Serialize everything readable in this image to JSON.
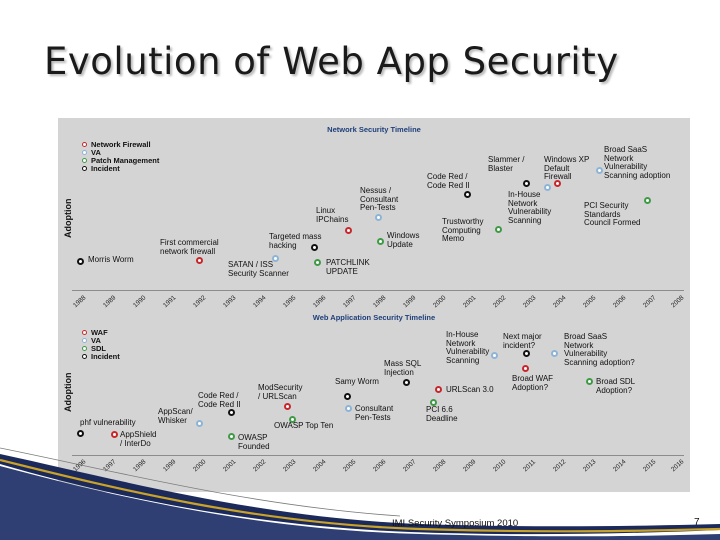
{
  "slide": {
    "title": "Evolution of Web App Security",
    "footer": "IMI Security Symposium 2010",
    "page_number": "7"
  },
  "colors": {
    "panel_bg": "#d4d4d4",
    "red": "#c8262a",
    "blue": "#8db4d6",
    "green": "#3e9a44",
    "black": "#111111",
    "panel_title": "#1f3f7a"
  },
  "network": {
    "title": "Network Security Timeline",
    "y_label": "Adoption",
    "legend": [
      {
        "label": "Network Firewall",
        "color": "red"
      },
      {
        "label": "VA",
        "color": "blue"
      },
      {
        "label": "Patch Management",
        "color": "green"
      },
      {
        "label": "Incident",
        "color": "black"
      }
    ],
    "years": [
      "1988",
      "1989",
      "1990",
      "1991",
      "1992",
      "1993",
      "1994",
      "1995",
      "1996",
      "1997",
      "1998",
      "1999",
      "2000",
      "2001",
      "2002",
      "2003",
      "2004",
      "2005",
      "2006",
      "2007",
      "2008"
    ],
    "events": [
      {
        "text": "Morris Worm",
        "color": "black"
      },
      {
        "text": "First commercial\nnetwork firewall",
        "color": "red"
      },
      {
        "text": "SATAN / ISS\nSecurity Scanner",
        "color": "blue"
      },
      {
        "text": "Targeted mass\nhacking",
        "color": "black"
      },
      {
        "text": "PATCHLINK\nUPDATE",
        "color": "green"
      },
      {
        "text": "Linux\nIPChains",
        "color": "red"
      },
      {
        "text": "Nessus /\nConsultant\nPen-Tests",
        "color": "blue"
      },
      {
        "text": "Windows\nUpdate",
        "color": "green"
      },
      {
        "text": "Code Red /\nCode Red II",
        "color": "black"
      },
      {
        "text": "Trustworthy\nComputing\nMemo",
        "color": "green"
      },
      {
        "text": "Slammer /\nBlaster",
        "color": "black"
      },
      {
        "text": "In-House\nNetwork\nVulnerability\nScanning",
        "color": "blue"
      },
      {
        "text": "Windows XP\nDefault\nFirewall",
        "color": "red"
      },
      {
        "text": "Broad SaaS\nNetwork\nVulnerability\nScanning adoption",
        "color": "blue"
      },
      {
        "text": "PCI Security\nStandards\nCouncil Formed",
        "color": "green"
      }
    ]
  },
  "webapp": {
    "title": "Web Application Security Timeline",
    "y_label": "Adoption",
    "legend": [
      {
        "label": "WAF",
        "color": "red"
      },
      {
        "label": "VA",
        "color": "blue"
      },
      {
        "label": "SDL",
        "color": "green"
      },
      {
        "label": "Incident",
        "color": "black"
      }
    ],
    "years": [
      "1996",
      "1997",
      "1998",
      "1999",
      "2000",
      "2001",
      "2002",
      "2003",
      "2004",
      "2005",
      "2006",
      "2007",
      "2008",
      "2009",
      "2010",
      "2011",
      "2012",
      "2013",
      "2014",
      "2015",
      "2016"
    ],
    "events": [
      {
        "text": "phf vulnerability",
        "color": "black"
      },
      {
        "text": "AppShield\n/ InterDo",
        "color": "red"
      },
      {
        "text": "AppScan/\nWhisker",
        "color": "blue"
      },
      {
        "text": "Code Red /\nCode Red II",
        "color": "black"
      },
      {
        "text": "OWASP\nFounded",
        "color": "green"
      },
      {
        "text": "ModSecurity\n/ URLScan",
        "color": "red"
      },
      {
        "text": "OWASP Top Ten",
        "color": "green"
      },
      {
        "text": "Samy Worm",
        "color": "black"
      },
      {
        "text": "Consultant\nPen-Tests",
        "color": "blue"
      },
      {
        "text": "Mass SQL\nInjection",
        "color": "black"
      },
      {
        "text": "URLScan 3.0",
        "color": "red"
      },
      {
        "text": "PCI 6.6\nDeadline",
        "color": "green"
      },
      {
        "text": "In-House\nNetwork\nVulnerability\nScanning",
        "color": "blue"
      },
      {
        "text": "Next major\nincident?",
        "color": "black"
      },
      {
        "text": "Broad WAF\nAdoption?",
        "color": "red"
      },
      {
        "text": "Broad SaaS\nNetwork\nVulnerability\nScanning adoption?",
        "color": "blue"
      },
      {
        "text": "Broad SDL\nAdoption?",
        "color": "green"
      }
    ]
  }
}
